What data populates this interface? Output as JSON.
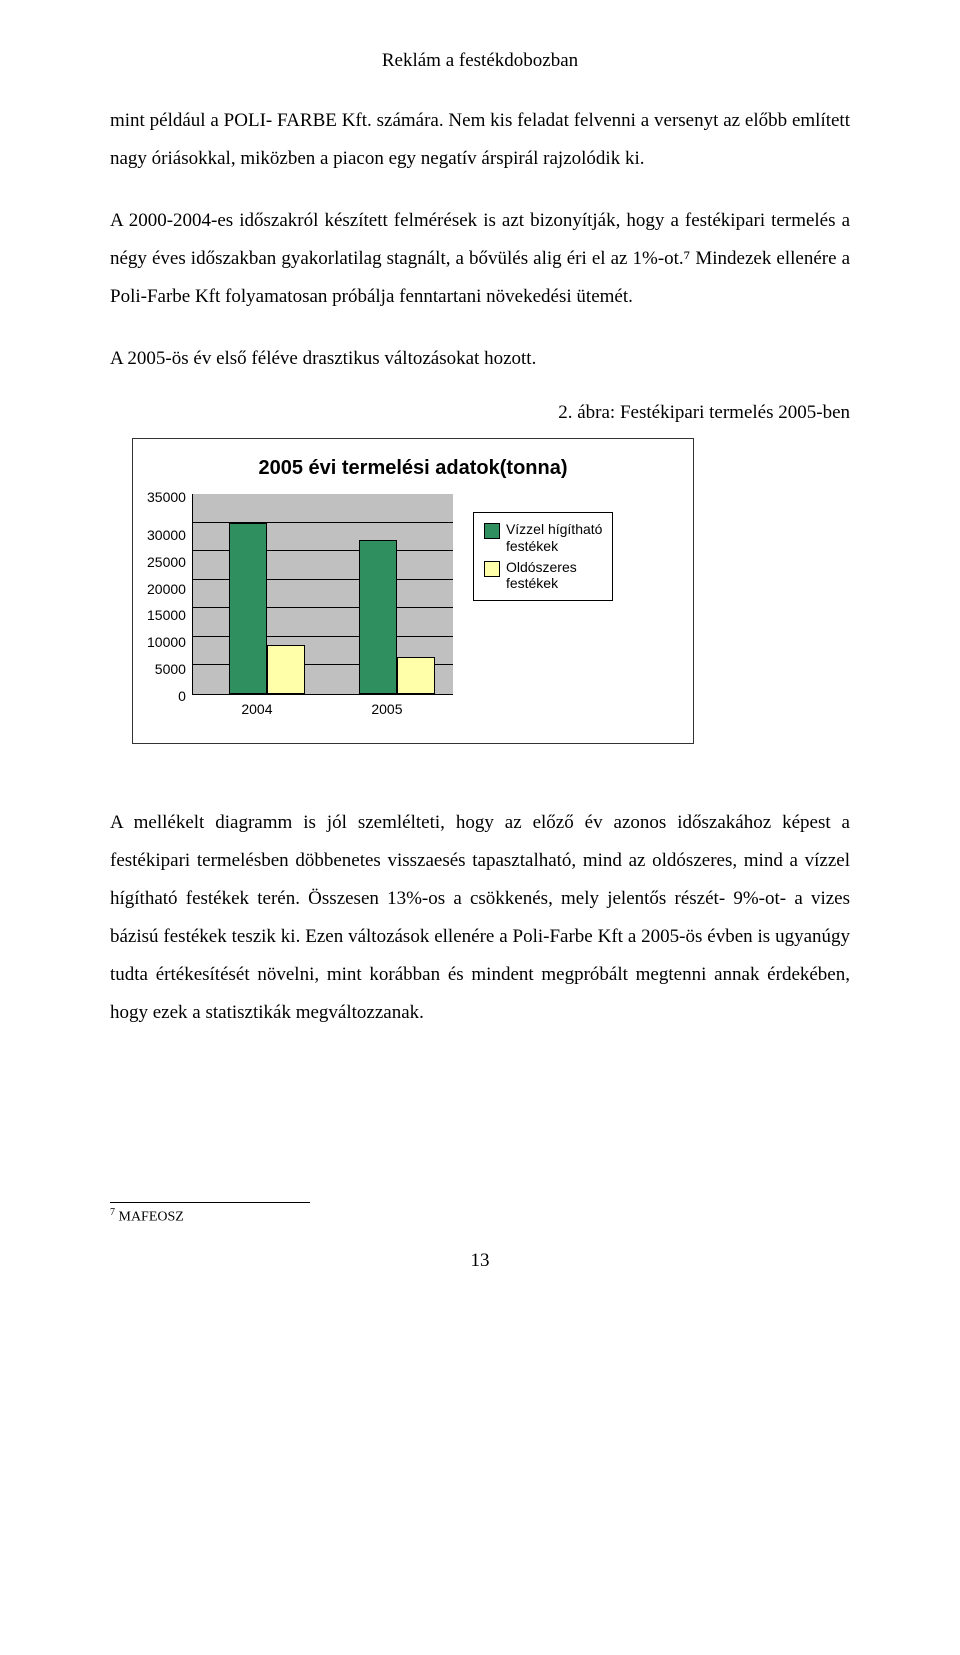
{
  "header": {
    "title": "Reklám a festékdobozban"
  },
  "paragraphs": {
    "p1": "mint például a POLI- FARBE Kft. számára. Nem kis feladat felvenni a versenyt az előbb említett nagy óriásokkal, miközben a piacon egy negatív árspirál rajzolódik ki.",
    "p2": "A 2000-2004-es időszakról készített felmérések is azt bizonyítják, hogy a festékipari termelés a négy éves időszakban gyakorlatilag stagnált, a bővülés alig éri el az 1%-ot.⁷ Mindezek ellenére a Poli-Farbe Kft folyamatosan próbálja fenntartani növekedési ütemét.",
    "p3": "A 2005-ös év első féléve drasztikus változásokat hozott.",
    "p4": "A mellékelt diagramm is jól szemlélteti, hogy az előző év azonos időszakához képest a festékipari termelésben döbbenetes visszaesés tapasztalható, mind az oldószeres, mind a vízzel hígítható festékek terén. Összesen 13%-os a csökkenés, mely jelentős részét- 9%-ot- a vizes bázisú festékek teszik ki. Ezen változások ellenére a Poli-Farbe Kft a 2005-ös évben is ugyanúgy tudta értékesítését növelni, mint korábban és mindent megpróbált megtenni annak érdekében, hogy ezek a statisztikák megváltozzanak."
  },
  "figure_caption": "2. ábra: Festékipari termelés 2005-ben",
  "chart": {
    "type": "bar",
    "title": "2005 évi termelési adatok(tonna)",
    "categories": [
      "2004",
      "2005"
    ],
    "series": [
      {
        "name": "Vízzel hígítható festékek",
        "color": "#2f8f5f",
        "values": [
          30000,
          27000
        ]
      },
      {
        "name": "Oldószeres festékek",
        "color": "#ffffaa",
        "values": [
          8500,
          6500
        ]
      }
    ],
    "y_ticks": [
      "35000",
      "30000",
      "25000",
      "20000",
      "15000",
      "10000",
      "5000",
      "0"
    ],
    "y_max": 35000,
    "plot_bg": "#c0c0c0",
    "grid_color": "#000000",
    "tick_fontsize": 14,
    "title_fontsize": 20
  },
  "footnote": {
    "marker": "7",
    "text": "MAFEOSZ"
  },
  "page_number": "13"
}
